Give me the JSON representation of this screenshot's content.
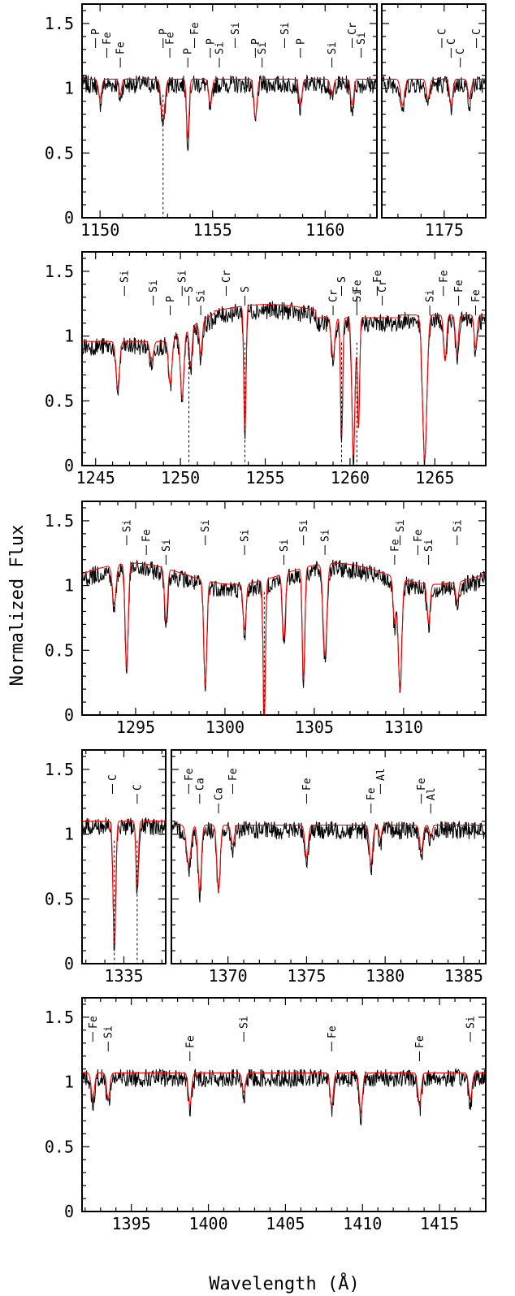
{
  "figure": {
    "ylabel": "Normalized Flux",
    "xlabel": "Wavelength (Å)"
  },
  "chart_data": [
    {
      "type": "line",
      "ylim": [
        0,
        1.65
      ],
      "xlim": [
        1149.2,
        1162.3
      ],
      "yticks": [
        "0",
        "0.5",
        "1",
        "1.5"
      ],
      "xticks": [
        "1150",
        "1155",
        "1160"
      ],
      "series": [
        {
          "color": "#000000"
        },
        {
          "color": "#ff0000"
        }
      ],
      "ids": [
        {
          "label": "P",
          "x": 1149.8
        },
        {
          "label": "Fe",
          "x": 1150.3
        },
        {
          "label": "Fe",
          "x": 1150.9
        },
        {
          "label": "P",
          "x": 1152.8
        },
        {
          "label": "Fe",
          "x": 1153.1
        },
        {
          "label": "P",
          "x": 1153.9
        },
        {
          "label": "Fe",
          "x": 1154.2
        },
        {
          "label": "P",
          "x": 1154.9
        },
        {
          "label": "Si",
          "x": 1155.3
        },
        {
          "label": "Si",
          "x": 1156.0
        },
        {
          "label": "P",
          "x": 1156.9
        },
        {
          "label": "Si",
          "x": 1157.2
        },
        {
          "label": "Si",
          "x": 1158.2
        },
        {
          "label": "P",
          "x": 1158.9
        },
        {
          "label": "Si",
          "x": 1160.3
        },
        {
          "label": "Cr",
          "x": 1161.2
        },
        {
          "label": "Si",
          "x": 1161.6
        }
      ]
    },
    {
      "type": "line",
      "ylim": [
        0,
        1.65
      ],
      "xlim": [
        1172.3,
        1176.8
      ],
      "yticks": [],
      "xticks": [
        "1175"
      ],
      "series": [
        {
          "color": "#000000"
        },
        {
          "color": "#ff0000"
        }
      ],
      "ids": [
        {
          "label": "C",
          "x": 1174.9
        },
        {
          "label": "C",
          "x": 1175.3
        },
        {
          "label": "C",
          "x": 1175.7
        },
        {
          "label": "C",
          "x": 1176.4
        }
      ]
    },
    {
      "type": "line",
      "ylim": [
        0,
        1.65
      ],
      "xlim": [
        1244.2,
        1268.0
      ],
      "yticks": [
        "0",
        "0.5",
        "1",
        "1.5"
      ],
      "xticks": [
        "1245",
        "1250",
        "1255",
        "1260",
        "1265"
      ],
      "series": [
        {
          "color": "#000000"
        },
        {
          "color": "#ff0000"
        }
      ],
      "ids": [
        {
          "label": "Si",
          "x": 1246.7
        },
        {
          "label": "Si",
          "x": 1248.4
        },
        {
          "label": "P",
          "x": 1249.4
        },
        {
          "label": "Si",
          "x": 1250.1
        },
        {
          "label": "S",
          "x": 1250.5
        },
        {
          "label": "Si",
          "x": 1251.2
        },
        {
          "label": "Cr",
          "x": 1252.7
        },
        {
          "label": "S",
          "x": 1253.8
        },
        {
          "label": "Cr",
          "x": 1259.0
        },
        {
          "label": "S",
          "x": 1259.5
        },
        {
          "label": "Fe",
          "x": 1260.4
        },
        {
          "label": "Si",
          "x": 1260.4
        },
        {
          "label": "Fe",
          "x": 1261.6
        },
        {
          "label": "Cr",
          "x": 1261.9
        },
        {
          "label": "Si",
          "x": 1264.7
        },
        {
          "label": "Fe",
          "x": 1265.5
        },
        {
          "label": "Fe",
          "x": 1266.4
        },
        {
          "label": "Fe",
          "x": 1267.4
        }
      ]
    },
    {
      "type": "line",
      "ylim": [
        0,
        1.65
      ],
      "xlim": [
        1292.0,
        1314.6
      ],
      "yticks": [
        "0",
        "0.5",
        "1",
        "1.5"
      ],
      "xticks": [
        "1295",
        "1300",
        "1305",
        "1310"
      ],
      "series": [
        {
          "color": "#000000"
        },
        {
          "color": "#ff0000"
        }
      ],
      "ids": [
        {
          "label": "Si",
          "x": 1294.5
        },
        {
          "label": "Fe",
          "x": 1295.6
        },
        {
          "label": "Si",
          "x": 1296.7
        },
        {
          "label": "Si",
          "x": 1298.9
        },
        {
          "label": "Si",
          "x": 1301.1
        },
        {
          "label": "Si",
          "x": 1303.3
        },
        {
          "label": "Si",
          "x": 1304.4
        },
        {
          "label": "Si",
          "x": 1305.6
        },
        {
          "label": "Fe",
          "x": 1309.5
        },
        {
          "label": "Si",
          "x": 1309.8
        },
        {
          "label": "Fe",
          "x": 1310.8
        },
        {
          "label": "Si",
          "x": 1311.4
        },
        {
          "label": "Si",
          "x": 1313.0
        }
      ]
    },
    {
      "type": "line",
      "ylim": [
        0,
        1.65
      ],
      "xlim": [
        1332.8,
        1337.2
      ],
      "yticks": [
        "0",
        "0.5",
        "1",
        "1.5"
      ],
      "xticks": [
        "1335"
      ],
      "series": [
        {
          "color": "#000000"
        },
        {
          "color": "#ff0000"
        }
      ],
      "ids": [
        {
          "label": "C",
          "x": 1334.4
        },
        {
          "label": "C",
          "x": 1335.7
        }
      ]
    },
    {
      "type": "line",
      "ylim": [
        0,
        1.65
      ],
      "xlim": [
        1366.4,
        1386.4
      ],
      "yticks": [],
      "xticks": [
        "1370",
        "1375",
        "1380",
        "1385"
      ],
      "series": [
        {
          "color": "#000000"
        },
        {
          "color": "#ff0000"
        }
      ],
      "ids": [
        {
          "label": "Fe",
          "x": 1367.5
        },
        {
          "label": "Ca",
          "x": 1368.2
        },
        {
          "label": "Ca",
          "x": 1369.4
        },
        {
          "label": "Fe",
          "x": 1370.3
        },
        {
          "label": "Fe",
          "x": 1375.0
        },
        {
          "label": "Fe",
          "x": 1379.1
        },
        {
          "label": "Al",
          "x": 1379.7
        },
        {
          "label": "Fe",
          "x": 1382.3
        },
        {
          "label": "Al",
          "x": 1382.9
        }
      ]
    },
    {
      "type": "line",
      "ylim": [
        0,
        1.65
      ],
      "xlim": [
        1391.8,
        1418.0
      ],
      "yticks": [
        "0",
        "0.5",
        "1",
        "1.5"
      ],
      "xticks": [
        "1395",
        "1400",
        "1405",
        "1410",
        "1415"
      ],
      "series": [
        {
          "color": "#000000"
        },
        {
          "color": "#ff0000"
        }
      ],
      "ids": [
        {
          "label": "Fe",
          "x": 1392.5
        },
        {
          "label": "Si",
          "x": 1393.5
        },
        {
          "label": "Fe",
          "x": 1398.8
        },
        {
          "label": "Si",
          "x": 1402.3
        },
        {
          "label": "Fe",
          "x": 1408.0
        },
        {
          "label": "Fe",
          "x": 1413.7
        },
        {
          "label": "Si",
          "x": 1417.0
        }
      ]
    }
  ]
}
